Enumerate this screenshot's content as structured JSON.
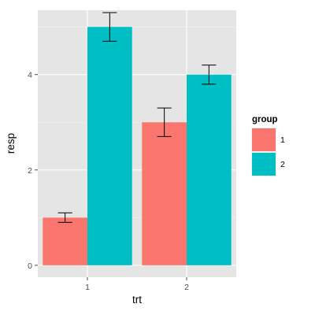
{
  "colors": {
    "panel_background": "#e5e5e5",
    "grid_major": "#ffffff",
    "grid_minor": "#f2f2f2",
    "tick_text": "#4d4d4d",
    "error_bar": "#000000"
  },
  "chart_data": {
    "type": "bar",
    "position": "dodge",
    "xlabel": "trt",
    "ylabel": "resp",
    "categories": [
      "1",
      "2"
    ],
    "ylim": [
      -0.25,
      5.35
    ],
    "y_ticks": [
      0,
      2,
      4
    ],
    "grid": true,
    "legend": {
      "title": "group",
      "placement": "right",
      "entries": [
        {
          "label": "1",
          "color": "#f8766d"
        },
        {
          "label": "2",
          "color": "#00bfc4"
        }
      ]
    },
    "series": [
      {
        "name": "1",
        "color": "#f8766d",
        "values": [
          1,
          3
        ],
        "lower": [
          0.9,
          2.7
        ],
        "upper": [
          1.1,
          3.3
        ]
      },
      {
        "name": "2",
        "color": "#00bfc4",
        "values": [
          5,
          4
        ],
        "lower": [
          4.7,
          3.8
        ],
        "upper": [
          5.3,
          4.2
        ]
      }
    ]
  }
}
